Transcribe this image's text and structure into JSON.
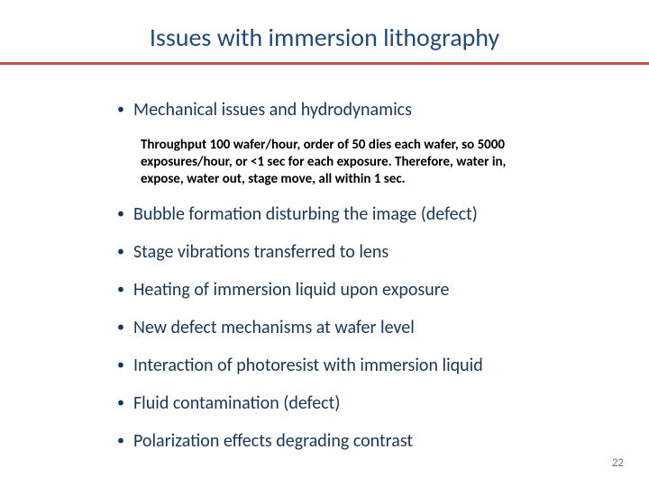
{
  "title": "Issues with immersion lithography",
  "colors": {
    "title": "#1f497d",
    "rule": "#c05046",
    "bullet": "#16365c",
    "bullet_text": "#16365c",
    "sub_text": "#000000",
    "page_num": "#8a6a5a",
    "background": "#ffffff"
  },
  "typography": {
    "title_fontsize": 28,
    "bullet_fontsize": 20,
    "sub_fontsize": 15,
    "pagenum_fontsize": 13,
    "font_family": "Calibri"
  },
  "bullets": [
    {
      "text": "Mechanical issues and hydrodynamics",
      "sub": "Throughput 100 wafer/hour, order of 50 dies each wafer, so 5000 exposures/hour, or <1 sec for each exposure. Therefore, water in, expose, water out, stage move, all within 1 sec."
    },
    {
      "text": "Bubble formation disturbing the image (defect)"
    },
    {
      "text": "Stage vibrations transferred to lens"
    },
    {
      "text": "Heating of immersion liquid upon exposure"
    },
    {
      "text": "New defect mechanisms at wafer level"
    },
    {
      "text": "Interaction of photoresist with immersion liquid"
    },
    {
      "text": "Fluid contamination (defect)"
    },
    {
      "text": "Polarization effects degrading contrast"
    }
  ],
  "page_number": "22"
}
